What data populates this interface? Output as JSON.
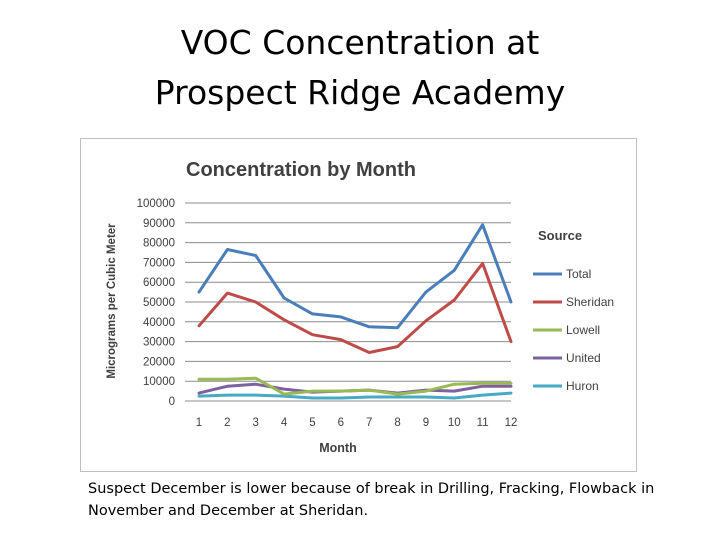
{
  "slide": {
    "title_line1": "VOC Concentration at",
    "title_line2": "Prospect Ridge Academy",
    "caption": "Suspect December is lower because of break in Drilling, Fracking, Flowback in November and December at Sheridan."
  },
  "chart_data": {
    "type": "line",
    "title": "Concentration by Month",
    "xlabel": "Month",
    "ylabel": "Micrograms per Cubic Meter",
    "x": [
      1,
      2,
      3,
      4,
      5,
      6,
      7,
      8,
      9,
      10,
      11,
      12
    ],
    "ylim": [
      0,
      100000
    ],
    "yticks": [
      0,
      10000,
      20000,
      30000,
      40000,
      50000,
      60000,
      70000,
      80000,
      90000,
      100000
    ],
    "grid": "horizontal",
    "legend_title": "Source",
    "legend_position": "right",
    "series": [
      {
        "name": "Total",
        "color": "#4a7ebb",
        "values": [
          55000,
          76500,
          73500,
          52000,
          44000,
          42500,
          37500,
          37000,
          55000,
          66000,
          89000,
          50000
        ]
      },
      {
        "name": "Sheridan",
        "color": "#be4b48",
        "values": [
          38000,
          54500,
          50000,
          41000,
          33500,
          31000,
          24500,
          27500,
          40500,
          51000,
          69500,
          30000
        ]
      },
      {
        "name": "Lowell",
        "color": "#98b954",
        "values": [
          11000,
          11000,
          11500,
          3500,
          5000,
          5000,
          5500,
          3500,
          5000,
          8500,
          9000,
          9000
        ]
      },
      {
        "name": "United",
        "color": "#7d60a0",
        "values": [
          4000,
          7500,
          8500,
          6000,
          4500,
          5000,
          5500,
          4000,
          5500,
          5000,
          7500,
          7500
        ]
      },
      {
        "name": "Huron",
        "color": "#46aac5",
        "values": [
          2500,
          3000,
          3000,
          2500,
          1500,
          1500,
          2000,
          2000,
          2000,
          1500,
          3000,
          4000
        ]
      }
    ]
  }
}
